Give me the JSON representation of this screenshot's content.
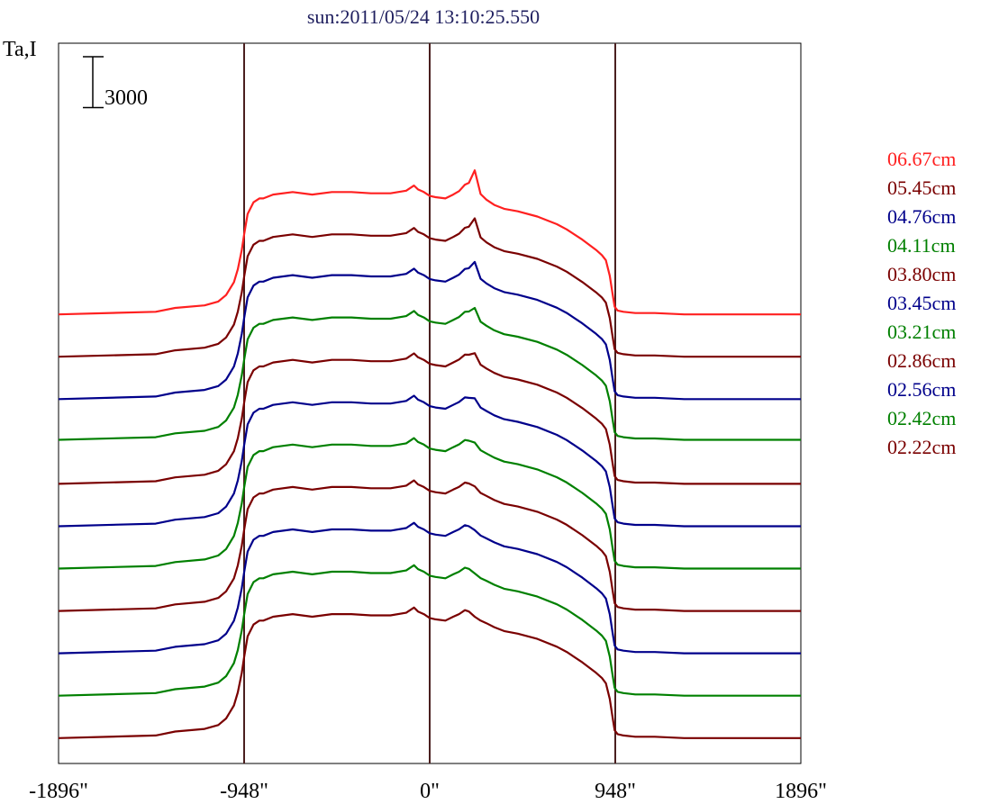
{
  "chart_data": {
    "type": "line",
    "title": "sun:2011/05/24 13:10:25.550",
    "ylabel": "Ta,I",
    "scale_bar_label": "3000",
    "x_ticks": [
      -1896,
      -948,
      0,
      948,
      1896
    ],
    "x_tick_labels": [
      "-1896\"",
      "-948\"",
      "0\"",
      "948\"",
      "1896\""
    ],
    "xlim": [
      -1896,
      1896
    ],
    "vertical_lines_at": [
      -948,
      0,
      948
    ],
    "grid": false,
    "legend_position": "right",
    "scale_bar_value": 3000,
    "profile_points": {
      "x": [
        -1896,
        -1400,
        -1300,
        -1150,
        -1080,
        -1040,
        -1000,
        -980,
        -960,
        -948,
        -930,
        -900,
        -870,
        -850,
        -800,
        -700,
        -600,
        -500,
        -400,
        -300,
        -200,
        -120,
        -80,
        -60,
        -30,
        0,
        30,
        80,
        120,
        150,
        180,
        200,
        230,
        260,
        290,
        330,
        380,
        450,
        550,
        650,
        700,
        780,
        850,
        880,
        900,
        920,
        935,
        945,
        960,
        990,
        1050,
        1150,
        1300,
        1500,
        1896
      ],
      "shape": [
        0,
        0.02,
        0.05,
        0.07,
        0.1,
        0.15,
        0.25,
        0.35,
        0.5,
        0.62,
        0.78,
        0.87,
        0.9,
        0.9,
        0.93,
        0.95,
        0.93,
        0.95,
        0.95,
        0.94,
        0.94,
        0.96,
        1.0,
        0.97,
        0.95,
        0.92,
        0.91,
        0.9,
        0.93,
        0.95,
        0.98,
        0.97,
        0.93,
        0.9,
        0.88,
        0.85,
        0.82,
        0.8,
        0.76,
        0.7,
        0.66,
        0.58,
        0.5,
        0.46,
        0.42,
        0.3,
        0.15,
        0.06,
        0.03,
        0.02,
        0.01,
        0.01,
        0.0,
        0.0,
        0.0
      ],
      "peak_shape": [
        0,
        0,
        0,
        0,
        0,
        0,
        0,
        0,
        0,
        0,
        0,
        0,
        0,
        0,
        0,
        0,
        0,
        0,
        0,
        0,
        0,
        0,
        0,
        0,
        0,
        0,
        0,
        0,
        0,
        0.02,
        0.08,
        0.15,
        0.55,
        0.1,
        0.03,
        0,
        0,
        0,
        0,
        0,
        0,
        0,
        0,
        0,
        0,
        0,
        0,
        0,
        0,
        0,
        0,
        0,
        0,
        0,
        0
      ]
    },
    "series": [
      {
        "name": "06.67cm",
        "color": "#ff2020",
        "baseline": 1000,
        "amplitude": 7600,
        "peak_amp": 2600,
        "limb_dip": 600
      },
      {
        "name": "05.45cm",
        "color": "#7a0000",
        "baseline": -1500,
        "amplitude": 7600,
        "peak_amp": 2000,
        "limb_dip": 0
      },
      {
        "name": "04.76cm",
        "color": "#00008b",
        "baseline": -4000,
        "amplitude": 7700,
        "peak_amp": 1700,
        "limb_dip": 0
      },
      {
        "name": "04.11cm",
        "color": "#008000",
        "baseline": -6400,
        "amplitude": 7600,
        "peak_amp": 1300,
        "limb_dip": 0
      },
      {
        "name": "03.80cm",
        "color": "#7a0000",
        "baseline": -9000,
        "amplitude": 7700,
        "peak_amp": 1000,
        "limb_dip": 0
      },
      {
        "name": "03.45cm",
        "color": "#00008b",
        "baseline": -11500,
        "amplitude": 7700,
        "peak_amp": 700,
        "limb_dip": 0
      },
      {
        "name": "03.21cm",
        "color": "#008000",
        "baseline": -14000,
        "amplitude": 7700,
        "peak_amp": 500,
        "limb_dip": 0
      },
      {
        "name": "02.86cm",
        "color": "#7a0000",
        "baseline": -16500,
        "amplitude": 7700,
        "peak_amp": 350,
        "limb_dip": 0
      },
      {
        "name": "02.56cm",
        "color": "#00008b",
        "baseline": -19000,
        "amplitude": 7700,
        "peak_amp": 200,
        "limb_dip": 0
      },
      {
        "name": "02.42cm",
        "color": "#008000",
        "baseline": -21500,
        "amplitude": 7700,
        "peak_amp": 100,
        "limb_dip": 0
      },
      {
        "name": "02.22cm",
        "color": "#7a0000",
        "baseline": -24000,
        "amplitude": 7700,
        "peak_amp": 0,
        "limb_dip": 0
      }
    ],
    "ylim": [
      -25500,
      17000
    ],
    "title_color": "#1f1f5f",
    "vline_color": "#4a1f1f"
  }
}
